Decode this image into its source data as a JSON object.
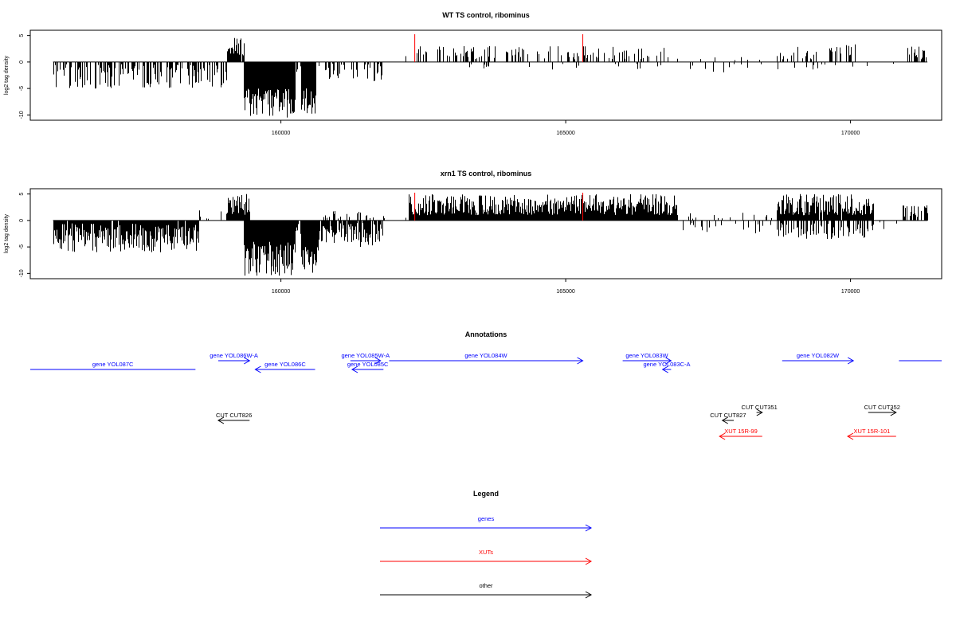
{
  "chart_data": [
    {
      "type": "bar",
      "title": "WT TS control, ribominus",
      "xlabel": "",
      "ylabel": "log2 tag density",
      "xlim": [
        155600,
        171600
      ],
      "ylim": [
        -11,
        6
      ],
      "x_ticks": [
        "160000",
        "165000",
        "170000"
      ],
      "y_ticks": [
        "-10",
        "-5",
        "0",
        "5"
      ],
      "markers": [
        162350,
        165300
      ],
      "marker_color": "#ff0000",
      "segments": [
        {
          "from": 156000,
          "to": 159050,
          "sign": -1,
          "min": 0.4,
          "max": 5.0,
          "density": 0.55
        },
        {
          "from": 159050,
          "to": 159350,
          "sign": 1,
          "min": 1.0,
          "max": 4.6,
          "density": 0.9
        },
        {
          "from": 159350,
          "to": 160250,
          "sign": -1,
          "min": 5.0,
          "max": 10.5,
          "density": 1.0
        },
        {
          "from": 160250,
          "to": 160350,
          "sign": -1,
          "min": 0.3,
          "max": 2.0,
          "density": 0.4
        },
        {
          "from": 160350,
          "to": 160600,
          "sign": -1,
          "min": 5.0,
          "max": 10.0,
          "density": 1.0
        },
        {
          "from": 160600,
          "to": 161800,
          "sign": -1,
          "min": 0.3,
          "max": 4.0,
          "density": 0.35
        },
        {
          "from": 161800,
          "to": 162350,
          "sign": 1,
          "min": 0.3,
          "max": 1.5,
          "density": 0.15
        },
        {
          "from": 162350,
          "to": 166800,
          "sign": 1,
          "min": 0.5,
          "max": 3.0,
          "density": 0.35
        },
        {
          "from": 162800,
          "to": 166800,
          "sign": -1,
          "min": 0.3,
          "max": 1.5,
          "density": 0.06
        },
        {
          "from": 166800,
          "to": 168700,
          "sign": -1,
          "min": 0.3,
          "max": 2.0,
          "density": 0.07
        },
        {
          "from": 166800,
          "to": 168700,
          "sign": 1,
          "min": 0.3,
          "max": 1.5,
          "density": 0.05
        },
        {
          "from": 168700,
          "to": 170100,
          "sign": 1,
          "min": 0.5,
          "max": 3.5,
          "density": 0.35
        },
        {
          "from": 168700,
          "to": 170100,
          "sign": -1,
          "min": 0.3,
          "max": 1.5,
          "density": 0.1
        },
        {
          "from": 170100,
          "to": 170900,
          "sign": -1,
          "min": 0.3,
          "max": 1.0,
          "density": 0.05
        },
        {
          "from": 170900,
          "to": 171350,
          "sign": 1,
          "min": 0.5,
          "max": 3.0,
          "density": 0.5
        }
      ]
    },
    {
      "type": "bar",
      "title": "xrn1 TS control, ribominus",
      "xlabel": "",
      "ylabel": "log2 tag density",
      "xlim": [
        155600,
        171600
      ],
      "ylim": [
        -11,
        6
      ],
      "x_ticks": [
        "160000",
        "165000",
        "170000"
      ],
      "y_ticks": [
        "-10",
        "-5",
        "0",
        "5"
      ],
      "markers": [
        162350,
        165300
      ],
      "marker_color": "#ff0000",
      "segments": [
        {
          "from": 156000,
          "to": 158550,
          "sign": -1,
          "min": 0.5,
          "max": 6.0,
          "density": 0.95
        },
        {
          "from": 158550,
          "to": 159050,
          "sign": 1,
          "min": 0.3,
          "max": 2.0,
          "density": 0.2
        },
        {
          "from": 159050,
          "to": 159450,
          "sign": 1,
          "min": 1.0,
          "max": 5.5,
          "density": 1.0
        },
        {
          "from": 159350,
          "to": 160250,
          "sign": -1,
          "min": 4.0,
          "max": 10.5,
          "density": 1.0
        },
        {
          "from": 160250,
          "to": 160350,
          "sign": -1,
          "min": 0.5,
          "max": 3.0,
          "density": 0.6
        },
        {
          "from": 160350,
          "to": 160650,
          "sign": -1,
          "min": 5.0,
          "max": 10.0,
          "density": 1.0
        },
        {
          "from": 160650,
          "to": 161800,
          "sign": -1,
          "min": 0.5,
          "max": 5.0,
          "density": 0.9
        },
        {
          "from": 160650,
          "to": 161800,
          "sign": 1,
          "min": 0.3,
          "max": 2.0,
          "density": 0.2
        },
        {
          "from": 161800,
          "to": 162250,
          "sign": 1,
          "min": 0.3,
          "max": 1.0,
          "density": 0.1
        },
        {
          "from": 162250,
          "to": 166950,
          "sign": 1,
          "min": 1.0,
          "max": 5.0,
          "density": 1.0
        },
        {
          "from": 166950,
          "to": 168800,
          "sign": -1,
          "min": 0.3,
          "max": 2.5,
          "density": 0.15
        },
        {
          "from": 166950,
          "to": 168800,
          "sign": 1,
          "min": 0.3,
          "max": 1.5,
          "density": 0.1
        },
        {
          "from": 168700,
          "to": 170400,
          "sign": 1,
          "min": 1.0,
          "max": 5.0,
          "density": 0.95
        },
        {
          "from": 168700,
          "to": 170400,
          "sign": -1,
          "min": 0.5,
          "max": 3.5,
          "density": 0.5
        },
        {
          "from": 170400,
          "to": 170900,
          "sign": -1,
          "min": 0.3,
          "max": 2.0,
          "density": 0.15
        },
        {
          "from": 170400,
          "to": 170900,
          "sign": 1,
          "min": 0.3,
          "max": 1.5,
          "density": 0.1
        },
        {
          "from": 170900,
          "to": 171350,
          "sign": 1,
          "min": 0.5,
          "max": 3.0,
          "density": 0.6
        }
      ]
    }
  ],
  "annotations": {
    "title": "Annotations",
    "xlim": [
      155600,
      171600
    ],
    "colors": {
      "genes": "#0000ff",
      "XUTs": "#ff0000",
      "other": "#000000"
    },
    "features": [
      {
        "label": "gene YOL087C",
        "start": 155600,
        "end": 158500,
        "strand": "none",
        "row": 1,
        "color": "genes"
      },
      {
        "label": "gene YOL086W-A",
        "start": 158900,
        "end": 159450,
        "strand": "+",
        "row": 0,
        "color": "genes"
      },
      {
        "label": "gene YOL086C",
        "start": 159550,
        "end": 160600,
        "strand": "-",
        "row": 1,
        "color": "genes"
      },
      {
        "label": "gene YOL085W-A",
        "start": 161220,
        "end": 161750,
        "strand": "+",
        "row": 0,
        "color": "genes"
      },
      {
        "label": "gene YOL085C",
        "start": 161250,
        "end": 161800,
        "strand": "-",
        "row": 1,
        "color": "genes"
      },
      {
        "label": "gene YOL084W",
        "start": 161900,
        "end": 165300,
        "strand": "+",
        "row": 0,
        "color": "genes"
      },
      {
        "label": "gene YOL083W",
        "start": 166000,
        "end": 166850,
        "strand": "+",
        "row": 0,
        "color": "genes"
      },
      {
        "label": "gene YOL083C-A",
        "start": 166700,
        "end": 166850,
        "strand": "-",
        "row": 1,
        "color": "genes"
      },
      {
        "label": "gene YOL082W",
        "start": 168800,
        "end": 170050,
        "strand": "+",
        "row": 0,
        "color": "genes"
      },
      {
        "label": "",
        "start": 170850,
        "end": 171600,
        "strand": "none",
        "row": 0,
        "color": "genes"
      },
      {
        "label": "CUT CUT826",
        "start": 158900,
        "end": 159450,
        "strand": "-",
        "row": 3,
        "color": "other"
      },
      {
        "label": "CUT CUT351",
        "start": 168350,
        "end": 168450,
        "strand": "+",
        "row": 2,
        "color": "other"
      },
      {
        "label": "CUT CUT827",
        "start": 167750,
        "end": 167950,
        "strand": "-",
        "row": 3,
        "color": "other"
      },
      {
        "label": "CUT CUT352",
        "start": 170310,
        "end": 170800,
        "strand": "+",
        "row": 2,
        "color": "other"
      },
      {
        "label": "XUT 15R-99",
        "start": 167700,
        "end": 168450,
        "strand": "-",
        "row": 4,
        "color": "XUTs"
      },
      {
        "label": "XUT 15R-101",
        "start": 169950,
        "end": 170800,
        "strand": "-",
        "row": 4,
        "color": "XUTs"
      }
    ]
  },
  "legend": {
    "title": "Legend",
    "items": [
      {
        "label": "genes",
        "color": "#0000ff"
      },
      {
        "label": "XUTs",
        "color": "#ff0000"
      },
      {
        "label": "other",
        "color": "#000000"
      }
    ]
  }
}
